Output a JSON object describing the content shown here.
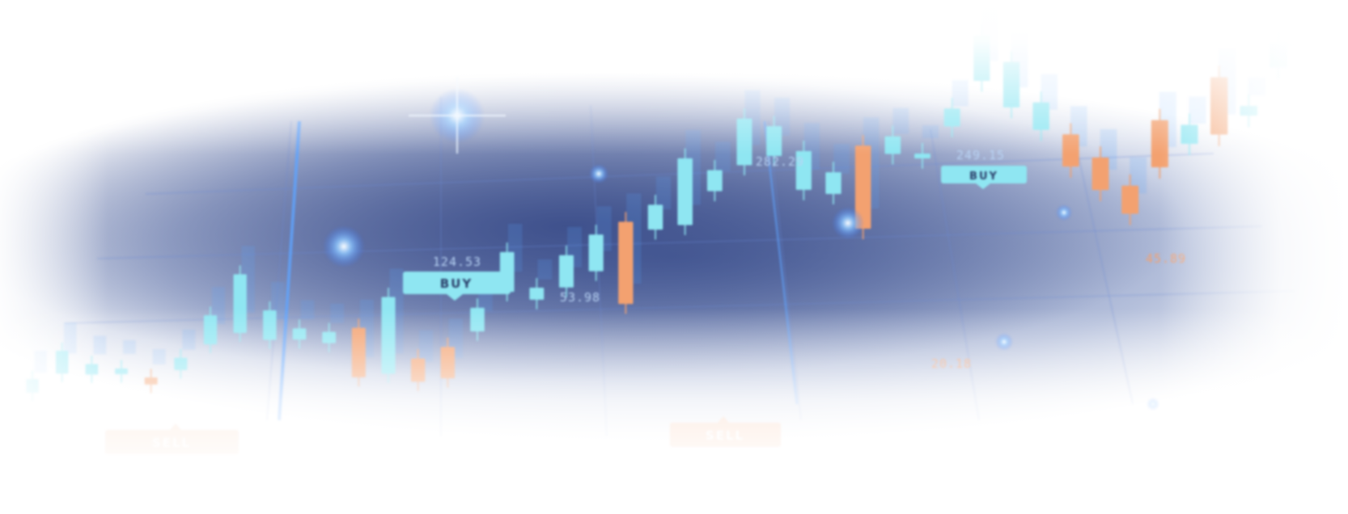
{
  "scene": {
    "description_tag": "stock-candlestick-banner",
    "colors": {
      "bull": "#8fe6f2",
      "bear": "#f3a170",
      "glow": "#5aa6ff",
      "panel": "#3c4e8a"
    }
  },
  "labels": {
    "buy_1": "BUY",
    "buy_2": "BUY",
    "sell_1": "SELL",
    "sell_2": "SELL",
    "price_1": "124.53",
    "price_2": "53.98",
    "price_3": "282.29",
    "price_4": "249.15",
    "price_5": "45.89",
    "price_6": "20.18"
  },
  "candles": [
    {
      "dir": "bull",
      "open": 40,
      "close": 60
    },
    {
      "dir": "bull",
      "open": 62,
      "close": 95
    },
    {
      "dir": "bull",
      "open": 55,
      "close": 70
    },
    {
      "dir": "bull",
      "open": 50,
      "close": 58
    },
    {
      "dir": "bear",
      "open": 40,
      "close": 30
    },
    {
      "dir": "bull",
      "open": 45,
      "close": 62
    },
    {
      "dir": "bull",
      "open": 75,
      "close": 115
    },
    {
      "dir": "bull",
      "open": 85,
      "close": 165
    },
    {
      "dir": "bull",
      "open": 70,
      "close": 110
    },
    {
      "dir": "bull",
      "open": 65,
      "close": 80
    },
    {
      "dir": "bull",
      "open": 55,
      "close": 70
    },
    {
      "dir": "bear",
      "open": 70,
      "close": 5
    },
    {
      "dir": "bull",
      "open": 5,
      "close": 105
    },
    {
      "dir": "bear",
      "open": 20,
      "close": -10
    },
    {
      "dir": "bear",
      "open": 30,
      "close": -10
    },
    {
      "dir": "bull",
      "open": 45,
      "close": 75
    },
    {
      "dir": "bull",
      "open": 90,
      "close": 140
    },
    {
      "dir": "bull",
      "open": 75,
      "close": 90
    },
    {
      "dir": "bull",
      "open": 85,
      "close": 125
    },
    {
      "dir": "bull",
      "open": 100,
      "close": 145
    },
    {
      "dir": "bear",
      "open": 155,
      "close": 55
    },
    {
      "dir": "bull",
      "open": 140,
      "close": 170
    },
    {
      "dir": "bull",
      "open": 140,
      "close": 220
    },
    {
      "dir": "bull",
      "open": 175,
      "close": 200
    },
    {
      "dir": "bull",
      "open": 200,
      "close": 255
    },
    {
      "dir": "bull",
      "open": 205,
      "close": 240
    },
    {
      "dir": "bull",
      "open": 160,
      "close": 205
    },
    {
      "dir": "bull",
      "open": 150,
      "close": 175
    },
    {
      "dir": "bear",
      "open": 200,
      "close": 105
    },
    {
      "dir": "bull",
      "open": 185,
      "close": 205
    },
    {
      "dir": "bull",
      "open": 175,
      "close": 180
    },
    {
      "dir": "bull",
      "open": 205,
      "close": 225
    },
    {
      "dir": "bull",
      "open": 250,
      "close": 300
    },
    {
      "dir": "bull",
      "open": 215,
      "close": 265
    },
    {
      "dir": "bull",
      "open": 185,
      "close": 215
    },
    {
      "dir": "bear",
      "open": 175,
      "close": 140
    },
    {
      "dir": "bear",
      "open": 145,
      "close": 110
    },
    {
      "dir": "bear",
      "open": 110,
      "close": 80
    },
    {
      "dir": "bear",
      "open": 175,
      "close": 125
    },
    {
      "dir": "bull",
      "open": 145,
      "close": 165
    },
    {
      "dir": "bear",
      "open": 210,
      "close": 150
    },
    {
      "dir": "bull",
      "open": 165,
      "close": 175
    },
    {
      "dir": "bull",
      "open": 210,
      "close": 235
    }
  ]
}
